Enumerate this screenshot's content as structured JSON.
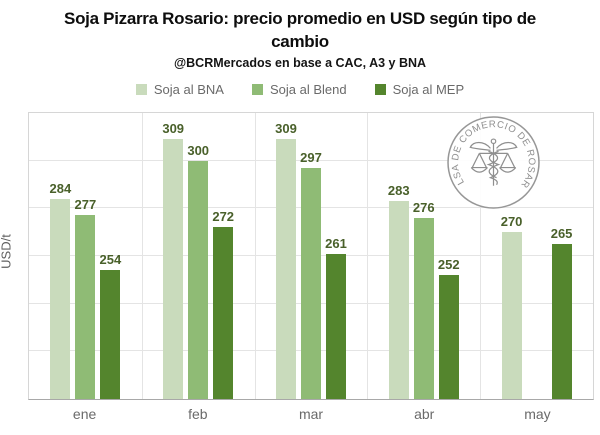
{
  "header": {
    "title_line1": "Soja Pizarra Rosario: precio promedio en USD según tipo de",
    "title_line2": "cambio",
    "subtitle": "@BCRMercados en base a CAC, A3 y BNA"
  },
  "watermark": {
    "text": "BOLSA DE COMERCIO DE ROSARIO"
  },
  "colors": {
    "bna": "#c9dbbc",
    "blend": "#8fbb75",
    "mep": "#54852d",
    "value_label": "#49602a",
    "grid": "#e4e4e4",
    "axis_text": "#6a6a6a"
  },
  "chart_data": {
    "type": "bar",
    "title": "Soja Pizarra Rosario: precio promedio en USD según tipo de cambio",
    "subtitle": "@BCRMercados en base a CAC, A3 y BNA",
    "categories": [
      "ene",
      "feb",
      "mar",
      "abr",
      "may"
    ],
    "series": [
      {
        "name": "Soja al BNA",
        "color": "#c9dbbc",
        "values": [
          284,
          309,
          309,
          283,
          270
        ]
      },
      {
        "name": "Soja al Blend",
        "color": "#8fbb75",
        "values": [
          277,
          300,
          297,
          276,
          null
        ]
      },
      {
        "name": "Soja al MEP",
        "color": "#54852d",
        "values": [
          254,
          272,
          261,
          252,
          265
        ]
      }
    ],
    "xlabel": "",
    "ylabel": "USD/t",
    "ylim": [
      200,
      320
    ],
    "grid_step": 20,
    "grid": true,
    "legend_position": "top"
  }
}
